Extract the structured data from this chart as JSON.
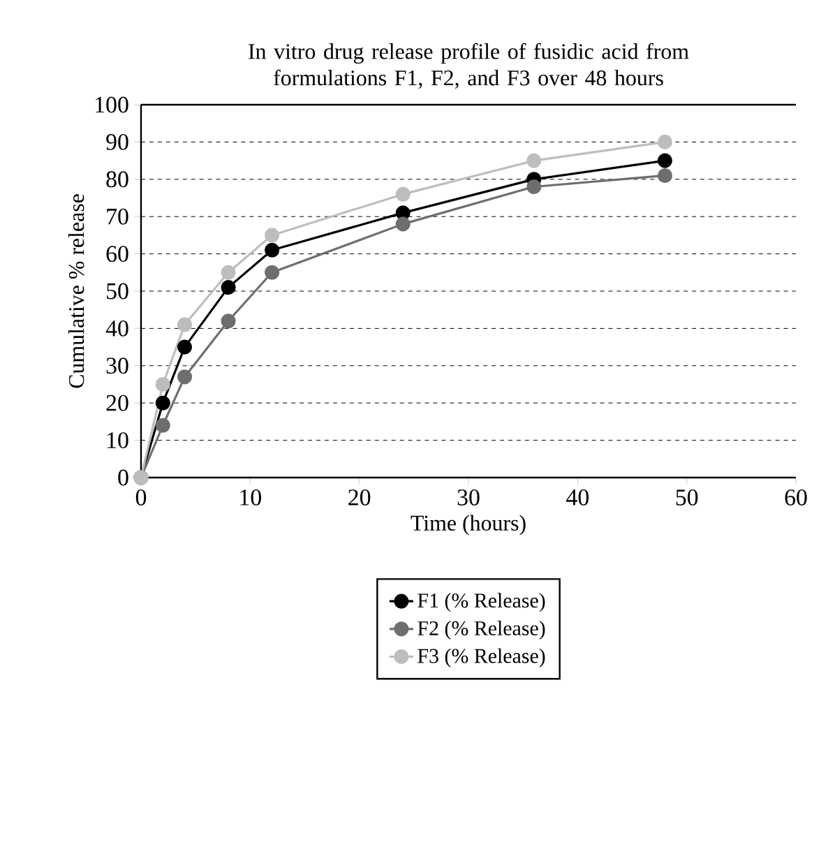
{
  "chart_data": {
    "type": "line",
    "title": "In vitro drug release profile of fusidic acid from formulations F1, F2, and F3 over 48 hours",
    "xlabel": "Time (hours)",
    "ylabel": "Cumulative % release",
    "x": [
      0,
      2,
      4,
      8,
      12,
      24,
      36,
      48
    ],
    "series": [
      {
        "name": "F1 (% Release)",
        "color": "#000000",
        "values": [
          0,
          20,
          35,
          51,
          61,
          71,
          80,
          85
        ]
      },
      {
        "name": "F2 (% Release)",
        "color": "#6e6e6e",
        "values": [
          0,
          14,
          27,
          42,
          55,
          68,
          78,
          81
        ]
      },
      {
        "name": "F3 (% Release)",
        "color": "#bdbdbd",
        "values": [
          0,
          25,
          41,
          55,
          65,
          76,
          85,
          90
        ]
      }
    ],
    "xlim": [
      0,
      60
    ],
    "xticks": [
      0,
      10,
      20,
      30,
      40,
      50,
      60
    ],
    "ylim": [
      0,
      100
    ],
    "yticks": [
      0,
      10,
      20,
      30,
      40,
      50,
      60,
      70,
      80,
      90,
      100
    ],
    "grid": "y",
    "legend": "bottom",
    "marker": "circle",
    "line_style": "solid"
  }
}
